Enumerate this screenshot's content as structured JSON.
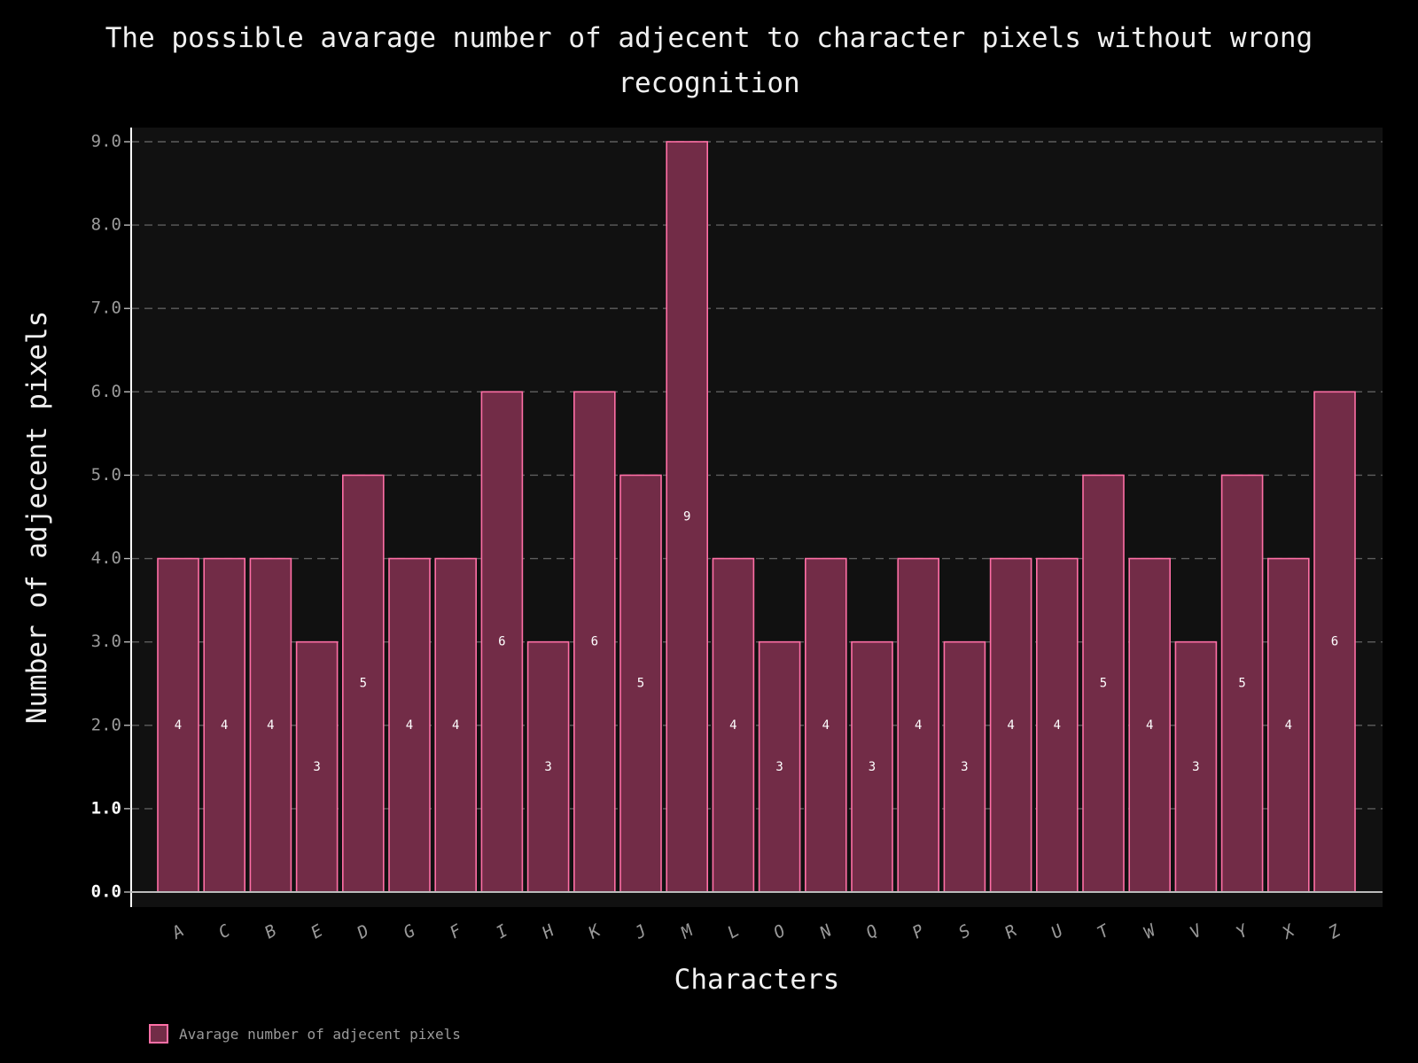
{
  "chart_data": {
    "type": "bar",
    "title": "The possible avarage number of adjecent to character pixels without wrong recognition",
    "xlabel": "Characters",
    "ylabel": "Number of adjecent pixels",
    "categories": [
      "A",
      "C",
      "B",
      "E",
      "D",
      "G",
      "F",
      "I",
      "H",
      "K",
      "J",
      "M",
      "L",
      "O",
      "N",
      "Q",
      "P",
      "S",
      "R",
      "U",
      "T",
      "W",
      "V",
      "Y",
      "X",
      "Z"
    ],
    "series": [
      {
        "name": "Avarage number of adjecent pixels",
        "values": [
          4,
          4,
          4,
          3,
          5,
          4,
          4,
          6,
          3,
          6,
          5,
          9,
          4,
          3,
          4,
          3,
          4,
          3,
          4,
          4,
          5,
          4,
          3,
          5,
          4,
          6
        ]
      }
    ],
    "ylim": [
      0,
      9
    ],
    "yticks": [
      "0.0",
      "1.0",
      "2.0",
      "3.0",
      "4.0",
      "5.0",
      "6.0",
      "7.0",
      "8.0",
      "9.0"
    ],
    "bold_yticks": [
      "0.0",
      "1.0"
    ],
    "grid": true,
    "legend_position": "bottom-left",
    "colors": {
      "background": "#000000",
      "plot_background": "#111111",
      "bar_fill": "#722c47",
      "bar_edge": "#ff6fa6"
    }
  }
}
